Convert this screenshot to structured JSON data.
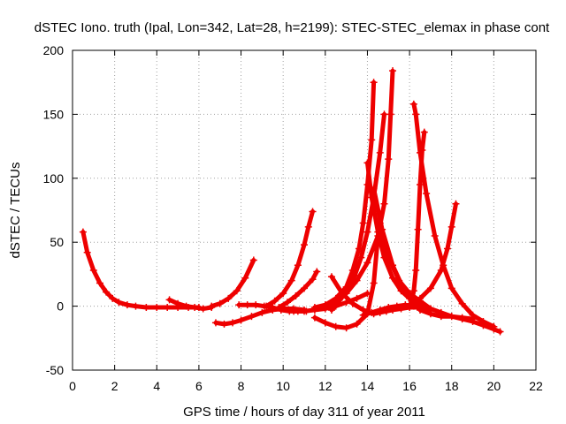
{
  "chart_data": {
    "type": "scatter",
    "title": "dSTEC Iono. truth (Ipal, Lon=342, Lat=28, h=2199): STEC-STEC_elemax in phase cont",
    "xlabel": "GPS time / hours of day 311 of year 2011",
    "ylabel": "dSTEC  / TECUs",
    "xlim": [
      0,
      22
    ],
    "ylim": [
      -50,
      200
    ],
    "x_ticks": [
      0,
      2,
      4,
      6,
      8,
      10,
      12,
      14,
      16,
      18,
      20,
      22
    ],
    "y_ticks": [
      -50,
      0,
      50,
      100,
      150,
      200
    ],
    "x_tick_labels": [
      "0",
      "2",
      "4",
      "6",
      "8",
      "10",
      "12",
      "14",
      "16",
      "18",
      "20",
      "22"
    ],
    "y_tick_labels": [
      "-50",
      "0",
      "50",
      "100",
      "150",
      "200"
    ],
    "grid": true,
    "marker": "plus",
    "color": "#ee0000",
    "series": [
      {
        "x": [
          0.5,
          0.7,
          1.0,
          1.3,
          1.6,
          1.9,
          2.2,
          2.6,
          3.0,
          3.5,
          4.0,
          4.5,
          5.0,
          5.5,
          6.0
        ],
        "y": [
          58,
          42,
          28,
          18,
          11,
          6,
          3,
          1,
          0,
          -1,
          -1,
          -1,
          -1,
          -1,
          -1
        ]
      },
      {
        "x": [
          4.6,
          5.0,
          5.4,
          5.8,
          6.2,
          6.6
        ],
        "y": [
          5,
          2,
          0,
          -1,
          -2,
          -1
        ]
      },
      {
        "x": [
          6.6,
          7.0,
          7.4,
          7.8,
          8.2,
          8.6
        ],
        "y": [
          0,
          2,
          6,
          12,
          22,
          36
        ]
      },
      {
        "x": [
          6.8,
          7.2,
          7.6,
          8.0,
          8.5,
          9.0,
          9.5,
          10.0,
          10.5,
          11.0
        ],
        "y": [
          -13,
          -14,
          -13,
          -11,
          -8,
          -5,
          -3,
          -2,
          -2,
          -3
        ]
      },
      {
        "x": [
          7.9,
          8.3,
          8.7,
          9.1,
          9.5,
          9.9,
          10.3,
          10.7,
          11.1
        ],
        "y": [
          1,
          1,
          1,
          0,
          -1,
          -3,
          -4,
          -4,
          -4
        ]
      },
      {
        "x": [
          9.2,
          9.6,
          10.0,
          10.4,
          10.7,
          11.0,
          11.2,
          11.4
        ],
        "y": [
          0,
          4,
          10,
          20,
          32,
          48,
          62,
          74
        ]
      },
      {
        "x": [
          9.8,
          10.2,
          10.6,
          11.0,
          11.4,
          11.6
        ],
        "y": [
          -1,
          3,
          8,
          14,
          21,
          27
        ]
      },
      {
        "x": [
          10.5,
          11.0,
          11.5,
          12.0,
          12.5,
          13.0,
          13.5,
          14.0
        ],
        "y": [
          -4,
          -4,
          -3,
          -2,
          0,
          3,
          6,
          10
        ]
      },
      {
        "x": [
          11.5,
          12.0,
          12.5,
          13.0,
          13.3,
          13.6,
          13.8,
          14.0,
          14.2,
          14.3
        ],
        "y": [
          -1,
          1,
          6,
          15,
          28,
          45,
          65,
          95,
          130,
          175
        ]
      },
      {
        "x": [
          12.3,
          12.5,
          12.8,
          13.1,
          13.4,
          13.7,
          14.0,
          14.3,
          14.6,
          14.8
        ],
        "y": [
          -3,
          1,
          7,
          14,
          24,
          38,
          58,
          85,
          120,
          150
        ]
      },
      {
        "x": [
          12.0,
          12.5,
          13.0,
          13.5,
          14.0,
          14.5,
          14.8,
          15.0,
          15.1,
          15.2
        ],
        "y": [
          0,
          4,
          10,
          20,
          34,
          55,
          80,
          115,
          150,
          184
        ]
      },
      {
        "x": [
          11.5,
          12.0,
          12.5,
          13.0,
          13.5,
          14.0,
          14.3,
          14.6
        ],
        "y": [
          -9,
          -13,
          -16,
          -17,
          -14,
          -6,
          18,
          72
        ]
      },
      {
        "x": [
          14.6,
          15.0,
          15.5,
          16.0,
          16.5,
          17.0,
          17.5,
          18.0,
          18.5,
          19.0,
          19.5,
          20.0,
          20.3
        ],
        "y": [
          65,
          38,
          20,
          10,
          4,
          -2,
          -5,
          -8,
          -10,
          -12,
          -15,
          -18,
          -20
        ]
      },
      {
        "x": [
          12.3,
          12.8,
          13.3,
          13.8,
          14.3,
          14.6,
          14.9,
          15.2,
          15.6,
          16.0,
          16.5
        ],
        "y": [
          23,
          10,
          2,
          -3,
          -6,
          -5,
          -4,
          -3,
          -2,
          -1,
          -1
        ]
      },
      {
        "x": [
          13.8,
          14.2,
          14.6,
          15.0,
          15.4,
          15.8,
          16.2,
          16.6,
          17.0
        ],
        "y": [
          -7,
          -5,
          -3,
          -1,
          0,
          1,
          0,
          -1,
          -2
        ]
      },
      {
        "x": [
          14.3,
          14.7,
          15.2,
          15.7,
          16.2,
          16.4
        ],
        "y": [
          92,
          60,
          32,
          14,
          4,
          0
        ]
      },
      {
        "x": [
          14.0,
          14.2,
          14.5,
          14.8,
          15.2,
          15.6,
          16.0,
          16.5,
          17.0
        ],
        "y": [
          112,
          85,
          58,
          38,
          22,
          12,
          6,
          1,
          -3
        ]
      },
      {
        "x": [
          16.2,
          16.3,
          16.5,
          16.8,
          17.2,
          17.6,
          18.0,
          18.5,
          19.0,
          19.5,
          20.0
        ],
        "y": [
          158,
          150,
          120,
          88,
          55,
          32,
          14,
          2,
          -7,
          -12,
          -16
        ]
      },
      {
        "x": [
          16.0,
          16.1,
          16.2,
          16.3,
          16.4,
          16.5,
          16.6,
          16.7
        ],
        "y": [
          0,
          4,
          12,
          28,
          60,
          95,
          122,
          136
        ]
      },
      {
        "x": [
          15.5,
          16.0,
          16.5,
          17.0,
          17.5,
          17.8,
          18.0,
          18.2
        ],
        "y": [
          -1,
          1,
          6,
          14,
          28,
          45,
          62,
          80
        ]
      },
      {
        "x": [
          16.5,
          17.0,
          17.5,
          18.0,
          18.5,
          19.0
        ],
        "y": [
          -3,
          -6,
          -8,
          -8,
          -9,
          -10
        ]
      }
    ]
  }
}
